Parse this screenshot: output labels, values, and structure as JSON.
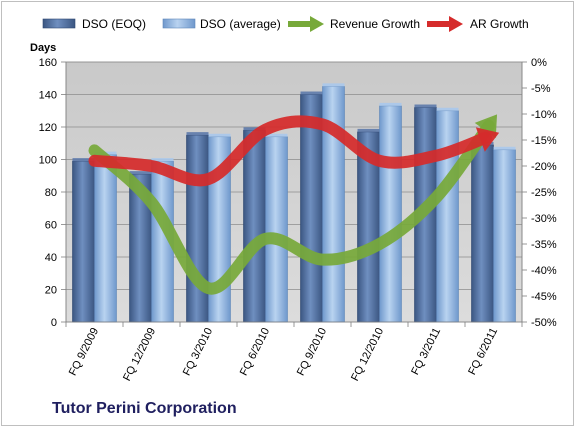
{
  "company": "Tutor Perini Corporation",
  "chart_data": {
    "type": "bar",
    "categories": [
      "FQ 9/2009",
      "FQ 12/2009",
      "FQ 3/2010",
      "FQ 6/2010",
      "FQ 9/2010",
      "FQ 12/2010",
      "FQ 3/2011",
      "FQ 6/2011"
    ],
    "series": [
      {
        "name": "DSO (EOQ)",
        "type": "bar",
        "axis": "left",
        "color": "#4f6fa0",
        "values": [
          99,
          91,
          115,
          118,
          140,
          117,
          132,
          109
        ]
      },
      {
        "name": "DSO (average)",
        "type": "bar",
        "axis": "left",
        "color": "#8fb4e0",
        "values": [
          103,
          99,
          114,
          114,
          145,
          133,
          130,
          106
        ]
      },
      {
        "name": "Revenue Growth",
        "type": "line-arrow",
        "axis": "right",
        "color": "#77a93a",
        "values": [
          -17,
          -27,
          -43.5,
          -34,
          -38,
          -35,
          -26,
          -11
        ]
      },
      {
        "name": "AR Growth",
        "type": "line-arrow",
        "axis": "right",
        "color": "#d52b2b",
        "values": [
          -19,
          -20,
          -22.5,
          -13,
          -12,
          -19,
          -18,
          -14
        ]
      }
    ],
    "ylabel": "Days",
    "ylim": [
      0,
      160
    ],
    "yticks": [
      0,
      20,
      40,
      60,
      80,
      100,
      120,
      140,
      160
    ],
    "y2lim": [
      -50,
      0
    ],
    "y2ticks": [
      "0%",
      "-5%",
      "-10%",
      "-15%",
      "-20%",
      "-25%",
      "-30%",
      "-35%",
      "-40%",
      "-45%",
      "-50%"
    ],
    "grid": true,
    "legend": "top"
  }
}
